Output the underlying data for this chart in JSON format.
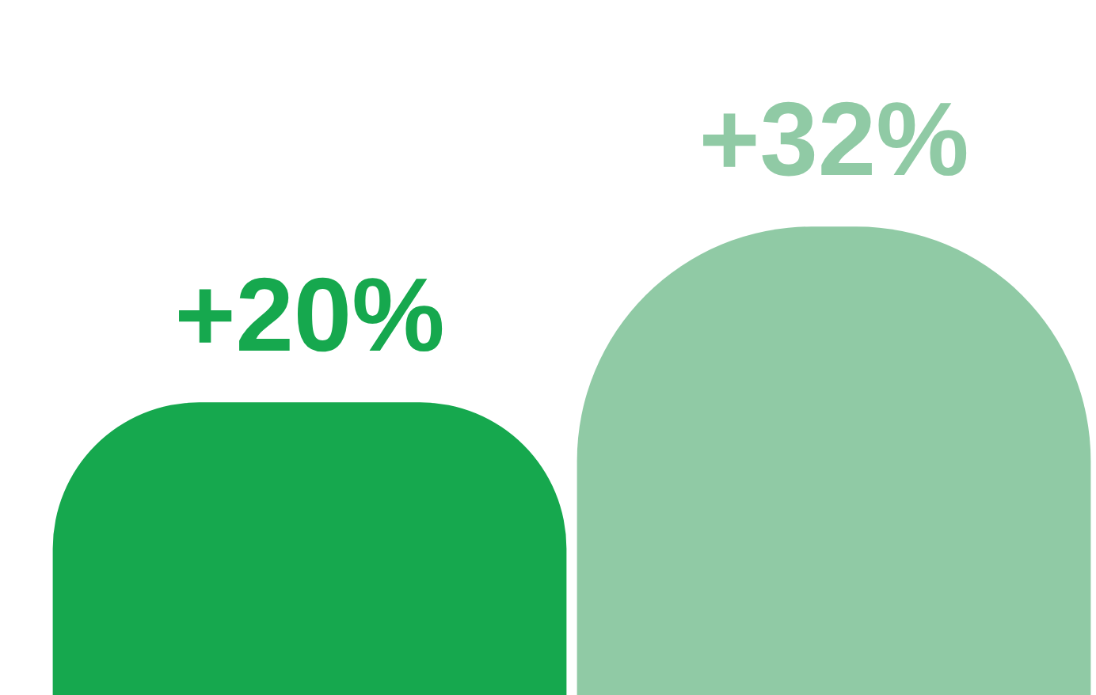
{
  "chart_data": {
    "type": "bar",
    "categories": [
      null,
      null
    ],
    "values": [
      20,
      32
    ],
    "colors": [
      "#16a84e",
      "#90caa5"
    ],
    "value_labels": [
      "+20%",
      "+32%"
    ],
    "legend": false
  }
}
